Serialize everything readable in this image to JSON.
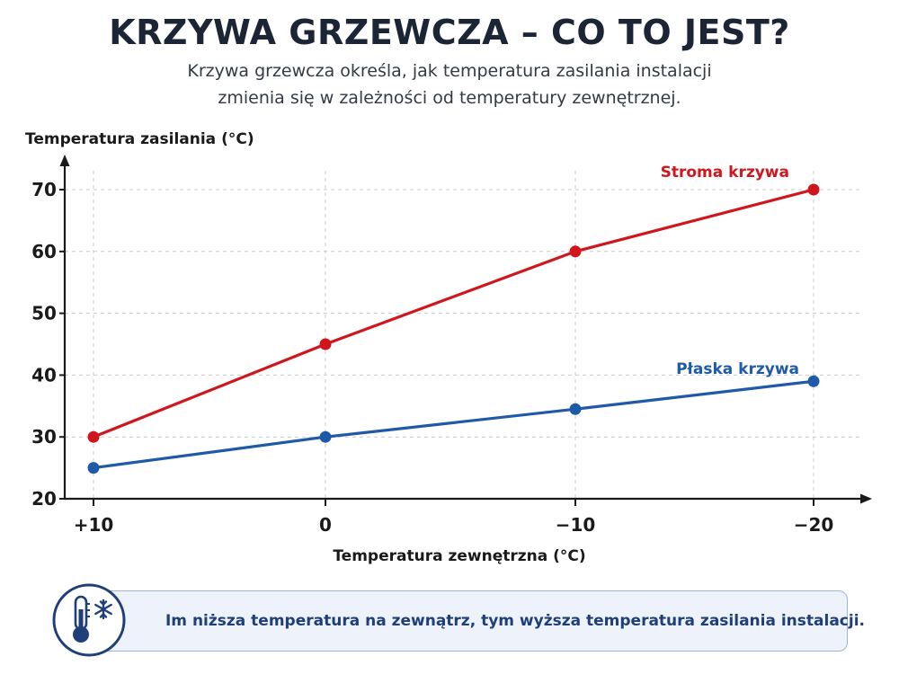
{
  "header": {
    "title": "KRZYWA GRZEWCZA – CO TO JEST?",
    "subtitle_line1": "Krzywa grzewcza określa, jak temperatura zasilania instalacji",
    "subtitle_line2": "zmienia się w zależności od temperatury zewnętrznej."
  },
  "chart_data": {
    "type": "line",
    "xlabel": "Temperatura zewnętrzna (°C)",
    "ylabel": "Temperatura zasilania (°C)",
    "x": [
      "+10",
      "0",
      "−10",
      "−20"
    ],
    "ylim": [
      20,
      70
    ],
    "yticks": [
      "20",
      "30",
      "40",
      "50",
      "60",
      "70"
    ],
    "grid": true,
    "series": [
      {
        "name": "Stroma krzywa",
        "values": [
          30,
          45,
          60,
          70
        ],
        "color": "#d0161c"
      },
      {
        "name": "Płaska krzywa",
        "values": [
          25,
          30,
          34.5,
          39
        ],
        "color": "#1f5aa8"
      }
    ]
  },
  "callout": {
    "text": "Im niższa temperatura na zewnątrz, tym wyższa temperatura zasilania instalacji.",
    "icon": "thermometer-snowflake-icon",
    "accent": "#1f3f7a"
  }
}
